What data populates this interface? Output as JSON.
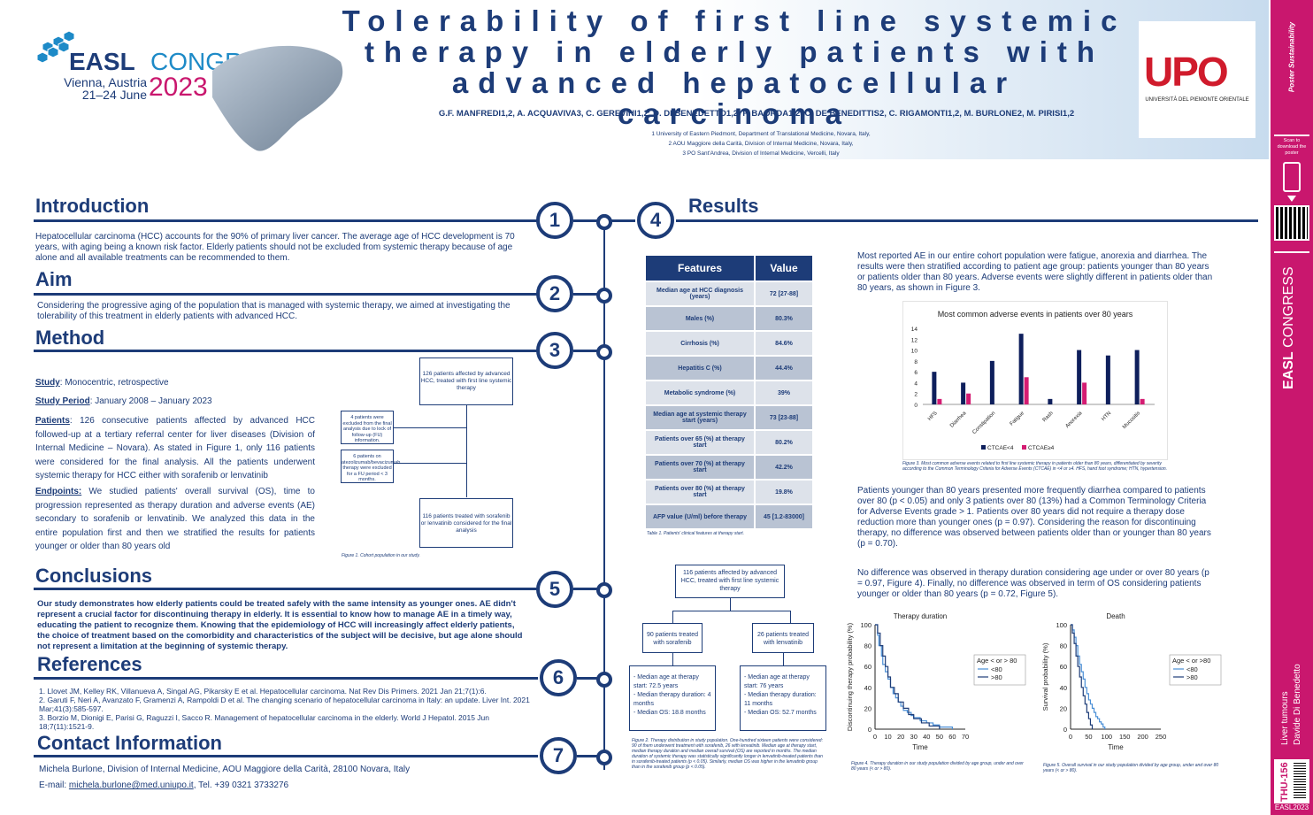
{
  "header": {
    "title": "Tolerability of first line systemic therapy in elderly patients with advanced hepatocellular carcinoma",
    "authors": "G.F. MANFREDI1,2, A. ACQUAVIVA3, C. GEREVINI1,2, D. DI BENEDETTO1,2, F. BAORDA1,2, C. DE BENEDITTIS2, C. RIGAMONTI1,2, M. BURLONE2, M. PIRISI1,2",
    "affil1": "1 University of Eastern Piedmont, Department of Translational Medicine, Novara, Italy,",
    "affil2": "2 AOU Maggiore della Carità, Division of Internal Medicine, Novara, Italy,",
    "affil3": "3 PO Sant'Andrea, Division of Internal Medicine, Vercelli, Italy",
    "easl_main": "EASL",
    "easl_congress": "CONGRESS",
    "easl_city": "Vienna, Austria",
    "easl_dates": "21–24 June",
    "easl_year": "2023",
    "upo_logo": "UPO",
    "upo_name": "UNIVERSITÀ DEL PIEMONTE ORIENTALE"
  },
  "sidebar": {
    "scan_text": "Scan to download the poster",
    "topic": "Liver tumours",
    "author": "Davide Di Benedetto",
    "code": "THU-156",
    "tag": "EASL2023"
  },
  "intro": {
    "title": "Introduction",
    "text": "Hepatocellular carcinoma (HCC) accounts for the 90% of primary liver cancer. The average age of HCC development is 70 years, with aging being a known risk factor. Elderly patients should not be excluded from systemic therapy because of age alone and all available treatments can be recommended to them."
  },
  "aim": {
    "title": "Aim",
    "text": "Considering the progressive aging of the population that is managed with systemic therapy, we aimed at investigating the tolerability of this treatment in elderly patients with advanced HCC."
  },
  "method": {
    "title": "Method",
    "study_label": "Study",
    "study": ": Monocentric, retrospective",
    "period_label": "Study Period",
    "period": ":  January 2008 – January 2023",
    "patients_label": "Patients",
    "patients": ": 126 consecutive patients affected by advanced HCC followed-up at a tertiary referral center for liver diseases (Division of Internal Medicine – Novara). As stated in Figure 1, only 116 patients were considered for the final analysis. All the patients underwent systemic therapy for HCC either with sorafenib or lenvatinib",
    "endpoints_label": "Endpoints:",
    "endpoints": " We studied patients' overall survival (OS), time to progression represented as therapy duration and adverse events (AE) secondary to sorafenib or lenvatinib. We analyzed this data in the entire population first and then we stratified the results for patients younger or older than 80 years old",
    "flow_top": "126 patients affected by advanced HCC, treated with first line systemic therapy",
    "flow_ex1": "4 patients were excluded from the final analysis due to lock of follow-up (FU) information.",
    "flow_ex2": "6 patients on atezolizumab/bevacizumab therapy were excluded for a FU period < 3 months.",
    "flow_bottom": "116 patients treated with sorafenib or lenvatinib considered for the final analysis",
    "fig1_caption": "Figure 1. Cohort population in our study."
  },
  "conclusions": {
    "title": "Conclusions",
    "text": "Our study demonstrates how elderly patients could be treated safely with the same intensity as younger ones. AE didn't represent a crucial factor for discontinuing therapy in elderly. It is essential to know how to manage AE in a timely way, educating the patient to recognize them. Knowing that the epidemiology of HCC will increasingly affect elderly patients, the choice of treatment based on the comorbidity and characteristics of the subject will be decisive, but age alone should not represent a limitation at the beginning of systemic therapy."
  },
  "references": {
    "title": "References",
    "items": [
      "1.   Llovet JM, Kelley RK, Villanueva A, Singal AG, Pikarsky E et al. Hepatocellular carcinoma. Nat Rev Dis Primers. 2021 Jan 21;7(1):6.",
      "2.   Garuti F, Neri A, Avanzato F, Gramenzi A, Rampoldi D et al. The changing scenario of hepatocellular carcinoma in Italy: an update. Liver Int. 2021 Mar;41(3):585-597.",
      "3.   Borzio M, Dionigi E, Parisi G, Raguzzi I, Sacco R. Management of hepatocellular carcinoma in the elderly. World J Hepatol. 2015 Jun 18;7(11):1521-9."
    ]
  },
  "contact": {
    "title": "Contact Information",
    "line1": "Michela Burlone, Division of Internal Medicine, AOU Maggiore della Carità, 28100 Novara, Italy",
    "email_prefix": "E-mail: ",
    "email": "michela.burlone@med.uniupo.it",
    "phone": ", Tel. +39 0321 3733276"
  },
  "steps": [
    "1",
    "2",
    "3",
    "4",
    "5",
    "6",
    "7"
  ],
  "results": {
    "title": "Results",
    "table_head": [
      "Features",
      "Value"
    ],
    "table_rows": [
      [
        "Median age at HCC diagnosis (years)",
        "72 [27-88]"
      ],
      [
        "Males (%)",
        "80.3%"
      ],
      [
        "Cirrhosis (%)",
        "84.6%"
      ],
      [
        "Hepatitis C (%)",
        "44.4%"
      ],
      [
        "Metabolic syndrome (%)",
        "39%"
      ],
      [
        "Median age at systemic therapy start (years)",
        "73 [23-88]"
      ],
      [
        "Patients over 65 (%) at therapy start",
        "80.2%"
      ],
      [
        "Patients over 70 (%) at therapy start",
        "42.2%"
      ],
      [
        "Patients over 80 (%) at therapy start",
        "19.8%"
      ],
      [
        "AFP value (U/ml) before therapy",
        "45 [1.2-83000]"
      ]
    ],
    "table_caption": "Table 1. Patients' clinical features at therapy start.",
    "p1": "Most reported AE in our entire cohort population were fatigue, anorexia and diarrhea. The results were then stratified according to patient age group: patients younger than 80 years or patients older than 80 years. Adverse events were slightly different in patients older than 80 years, as shown in Figure 3.",
    "fig3_caption": "Figure 3. Most common adverse events related to first line systemic therapy in patients older than 80 years, differentiated by severity according to the Common Terminology Criteria for Adverse Events (CTCAE) in <4 or ≥4. HFS, hand foot syndrome; HTN, hypertension.",
    "p2": "Patients younger than 80 years presented more frequently diarrhea compared to patients over 80 (p < 0.05) and only 3 patients over 80 (13%) had a Common Terminology Criteria for Adverse Events grade > 1. Patients over 80 years did not require a therapy dose reduction more than younger ones (p = 0.97). Considering the reason for discontinuing therapy, no difference was observed between patients older than or younger than 80 years (p = 0.70).",
    "p3": "No difference was observed in therapy duration considering age under or over 80 years (p = 0.97, Figure 4). Finally, no difference was observed in term of OS considering patients younger or older than 80 years (p = 0.72, Figure 5).",
    "flow2_top": "116 patients affected by advanced HCC, treated with first line systemic therapy",
    "flow2_left": "90 patients treated with sorafenib",
    "flow2_right": "26 patients treated with lenvatinib",
    "flow2_left_detail": [
      "-   Median age at therapy start: 72.5 years",
      "-   Median therapy duration: 4 months",
      "- Median OS: 18.8 months"
    ],
    "flow2_right_detail": [
      "-   Median age at therapy start: 76 years",
      "-   Median therapy duration: 11 months",
      "- Median OS: 52.7 months"
    ],
    "fig2_caption": "Figure 2. Therapy distribution in study population. One-hundred sixteen patients were considered: 90 of them underwent treatment with sorafenib, 26 with lenvatinib. Median age at therapy start, median therapy duration and median overall survival (OS) are reported in months. The median duration of systemic therapy was statistically significantly longer in lenvatinib-treated patients than in sorafenib-treated patients (p < 0.05). Similarly, median OS was higher in the lenvatinib group than in the sorafenib group (p < 0.05).",
    "fig4_caption": "Figure 4. Therapy duration in our study population divided by age group, under and over 80 years (< or > 80).",
    "fig5_caption": "Figure 5. Overall survival in our study population divided by age group, under and over 80 years (< or > 80)."
  },
  "chart_data": [
    {
      "type": "bar",
      "title": "Most common adverse events in patients over 80  years",
      "categories": [
        "HFS",
        "Diarrhea",
        "Constipation",
        "Fatigue",
        "Rash",
        "Anorexia",
        "HTN",
        "Mucositis"
      ],
      "series": [
        {
          "name": "CTCAE<4",
          "values": [
            6,
            4,
            8,
            13,
            1,
            10,
            9,
            10
          ],
          "color": "#0e1f5c"
        },
        {
          "name": "CTCAE≥4",
          "values": [
            1,
            2,
            0,
            5,
            0,
            4,
            0,
            1
          ],
          "color": "#d41c72"
        }
      ],
      "ylim": [
        0,
        14
      ],
      "yticks": [
        0,
        2,
        4,
        6,
        8,
        10,
        12,
        14
      ],
      "legend": "bottom"
    },
    {
      "type": "line",
      "title": "Therapy duration",
      "xlabel": "Time",
      "ylabel": "Discontinuing therapy probability (%)",
      "xlim": [
        0,
        70
      ],
      "xticks": [
        0,
        10,
        20,
        30,
        40,
        50,
        60,
        70
      ],
      "ylim": [
        0,
        100
      ],
      "yticks": [
        0,
        20,
        40,
        60,
        80,
        100
      ],
      "legend_title": "Age < or > 80",
      "legend": "right",
      "series": [
        {
          "name": "<80",
          "color": "#4a8fd6",
          "x": [
            0,
            2,
            3,
            5,
            6,
            8,
            10,
            12,
            14,
            16,
            18,
            20,
            22,
            25,
            28,
            30,
            35,
            40,
            45,
            50,
            60
          ],
          "y": [
            100,
            90,
            80,
            70,
            62,
            55,
            48,
            40,
            34,
            30,
            26,
            22,
            18,
            16,
            13,
            11,
            8,
            6,
            4,
            2,
            0
          ]
        },
        {
          "name": ">80",
          "color": "#1d3c78",
          "x": [
            0,
            2,
            4,
            6,
            8,
            10,
            12,
            15,
            18,
            22,
            26,
            30,
            36,
            42,
            50
          ],
          "y": [
            100,
            92,
            80,
            70,
            60,
            50,
            40,
            34,
            26,
            20,
            14,
            10,
            6,
            3,
            0
          ]
        }
      ]
    },
    {
      "type": "line",
      "title": "Death",
      "xlabel": "Time",
      "ylabel": "Survival probability (%)",
      "xlim": [
        0,
        250
      ],
      "xticks": [
        0,
        50,
        100,
        150,
        200,
        250
      ],
      "ylim": [
        0,
        100
      ],
      "yticks": [
        0,
        20,
        40,
        60,
        80,
        100
      ],
      "legend_title": "Age < or >80",
      "legend": "right",
      "series": [
        {
          "name": "<80",
          "color": "#4a8fd6",
          "x": [
            0,
            5,
            10,
            15,
            20,
            25,
            30,
            35,
            40,
            45,
            50,
            55,
            60,
            65,
            70,
            75,
            80,
            85,
            90,
            95
          ],
          "y": [
            100,
            95,
            88,
            80,
            70,
            62,
            55,
            48,
            40,
            34,
            28,
            24,
            20,
            16,
            12,
            10,
            7,
            5,
            2,
            0
          ]
        },
        {
          "name": ">80",
          "color": "#1d3c78",
          "x": [
            0,
            5,
            10,
            15,
            20,
            25,
            30,
            35,
            40,
            45,
            50,
            55,
            60
          ],
          "y": [
            100,
            92,
            82,
            70,
            60,
            50,
            40,
            32,
            24,
            16,
            10,
            4,
            0
          ]
        }
      ]
    }
  ]
}
